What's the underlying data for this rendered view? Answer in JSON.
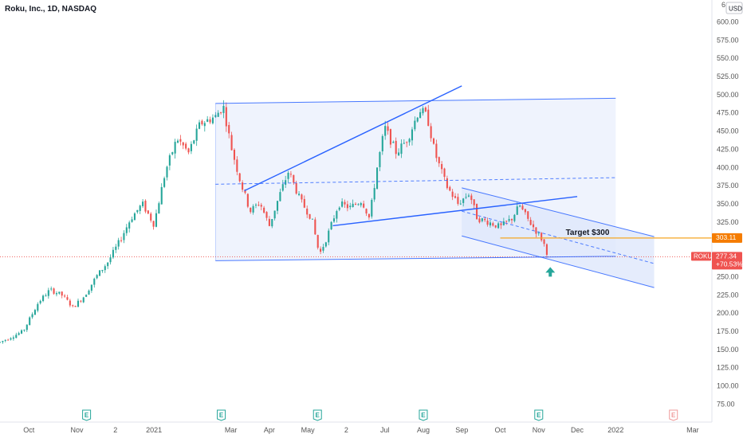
{
  "title": "Roku, Inc., 1D, NASDAQ",
  "currency": "USD",
  "top_partial_price": "6",
  "colors": {
    "up": "#26a69a",
    "down": "#ef5350",
    "channel_line": "#2962ff",
    "channel_fill": "#e8eefc",
    "target_line": "#f5a623",
    "price_tag": "#ef5350",
    "target_tag": "#f57c00",
    "arrow": "#26a69a"
  },
  "price_tag": {
    "label": "ROKU",
    "value": "277.34",
    "change": "+70.53%"
  },
  "target_tag": {
    "value": "303.11"
  },
  "annotation": {
    "text": "Target $300"
  },
  "earnings_label": "E",
  "chart_data": {
    "type": "candlestick",
    "title": "Roku, Inc., 1D, NASDAQ",
    "ylim": [
      70,
      630
    ],
    "yticks": [
      75,
      100,
      125,
      150,
      175,
      200,
      225,
      250,
      275,
      300,
      325,
      350,
      375,
      400,
      425,
      450,
      475,
      500,
      525,
      550,
      575,
      600
    ],
    "ytick_labels": [
      "75.00",
      "100.00",
      "125.00",
      "150.00",
      "175.00",
      "200.00",
      "225.00",
      "250.00",
      "275.00",
      "300.00",
      "325.00",
      "350.00",
      "375.00",
      "400.00",
      "425.00",
      "450.00",
      "475.00",
      "500.00",
      "525.00",
      "550.00",
      "575.00",
      "600.00"
    ],
    "xticks": [
      {
        "label": "Oct",
        "t": 0.5
      },
      {
        "label": "Nov",
        "t": 3.0
      },
      {
        "label": "2",
        "t": 5.0
      },
      {
        "label": "2021",
        "t": 7.0
      },
      {
        "label": "Mar",
        "t": 11.0
      },
      {
        "label": "Apr",
        "t": 13.0
      },
      {
        "label": "May",
        "t": 15.0
      },
      {
        "label": "2",
        "t": 17.0
      },
      {
        "label": "Jul",
        "t": 19.0
      },
      {
        "label": "Aug",
        "t": 21.0
      },
      {
        "label": "Sep",
        "t": 23.0
      },
      {
        "label": "Oct",
        "t": 25.0
      },
      {
        "label": "Nov",
        "t": 27.0
      },
      {
        "label": "Dec",
        "t": 29.0
      },
      {
        "label": "2022",
        "t": 31.0
      },
      {
        "label": "Mar",
        "t": 35.0
      }
    ],
    "xlim": [
      -1.0,
      36.0
    ],
    "price_path": [
      [
        -1.0,
        160
      ],
      [
        0.2,
        175
      ],
      [
        1.0,
        215
      ],
      [
        1.6,
        232
      ],
      [
        2.2,
        225
      ],
      [
        2.8,
        208
      ],
      [
        3.4,
        224
      ],
      [
        4.0,
        250
      ],
      [
        4.6,
        270
      ],
      [
        5.2,
        298
      ],
      [
        5.8,
        330
      ],
      [
        6.4,
        350
      ],
      [
        7.0,
        322
      ],
      [
        7.6,
        395
      ],
      [
        8.2,
        440
      ],
      [
        8.8,
        420
      ],
      [
        9.4,
        460
      ],
      [
        10.2,
        470
      ],
      [
        10.6,
        485
      ],
      [
        11.0,
        430
      ],
      [
        11.5,
        380
      ],
      [
        12.0,
        340
      ],
      [
        12.5,
        352
      ],
      [
        13.0,
        320
      ],
      [
        13.5,
        360
      ],
      [
        14.0,
        395
      ],
      [
        14.6,
        355
      ],
      [
        15.2,
        330
      ],
      [
        15.6,
        280
      ],
      [
        16.0,
        305
      ],
      [
        16.6,
        350
      ],
      [
        17.2,
        345
      ],
      [
        17.8,
        355
      ],
      [
        18.2,
        330
      ],
      [
        18.6,
        400
      ],
      [
        19.0,
        455
      ],
      [
        19.6,
        420
      ],
      [
        20.2,
        440
      ],
      [
        20.8,
        480
      ],
      [
        21.2,
        470
      ],
      [
        21.6,
        420
      ],
      [
        22.2,
        375
      ],
      [
        22.8,
        350
      ],
      [
        23.4,
        365
      ],
      [
        23.8,
        330
      ],
      [
        24.4,
        325
      ],
      [
        25.0,
        318
      ],
      [
        25.6,
        330
      ],
      [
        26.0,
        348
      ],
      [
        26.4,
        330
      ],
      [
        26.8,
        315
      ],
      [
        27.2,
        300
      ],
      [
        27.5,
        278
      ]
    ],
    "channels": {
      "outer_top": [
        [
          10.2,
          488
        ],
        [
          31.0,
          495
        ]
      ],
      "outer_bottom": [
        [
          10.2,
          272
        ],
        [
          31.0,
          278
        ]
      ],
      "outer_mid": [
        [
          10.2,
          377
        ],
        [
          31.0,
          386
        ]
      ],
      "rising_wedge_top": [
        [
          11.7,
          368
        ],
        [
          23.0,
          512
        ]
      ],
      "rising_wedge_bottom": [
        [
          16.3,
          320
        ],
        [
          29.0,
          360
        ]
      ],
      "falling_top": [
        [
          23.0,
          372
        ],
        [
          33.0,
          305
        ]
      ],
      "falling_bottom": [
        [
          23.0,
          306
        ],
        [
          33.0,
          235
        ]
      ],
      "falling_mid": [
        [
          23.0,
          340
        ],
        [
          33.0,
          268
        ]
      ],
      "target_level": [
        [
          25.0,
          303.11
        ],
        [
          36.0,
          303.11
        ]
      ],
      "current_level": 277.34
    },
    "earnings_t": [
      3.5,
      10.5,
      15.5,
      21.0,
      27.0,
      34.0
    ]
  }
}
